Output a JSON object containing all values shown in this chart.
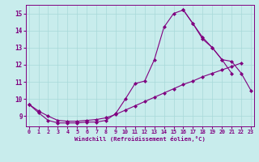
{
  "xlabel": "Windchill (Refroidissement éolien,°C)",
  "background_color": "#c8ecec",
  "line_color": "#800080",
  "grid_color": "#a8d8d8",
  "x_values": [
    0,
    1,
    2,
    3,
    4,
    5,
    6,
    7,
    8,
    9,
    10,
    11,
    12,
    13,
    14,
    15,
    16,
    17,
    18,
    19,
    20,
    21,
    22,
    23
  ],
  "line1": [
    9.7,
    9.2,
    8.75,
    8.6,
    8.6,
    8.6,
    8.65,
    8.65,
    8.75,
    9.15,
    10.0,
    10.9,
    11.05,
    12.3,
    14.2,
    15.0,
    15.2,
    14.4,
    13.5,
    13.0,
    12.3,
    11.5,
    null,
    null
  ],
  "line2": [
    null,
    null,
    null,
    null,
    null,
    null,
    null,
    null,
    null,
    null,
    null,
    null,
    null,
    null,
    null,
    null,
    15.2,
    14.4,
    13.6,
    13.0,
    12.3,
    12.2,
    11.5,
    10.5
  ],
  "line3": [
    9.7,
    9.3,
    9.0,
    8.75,
    8.7,
    8.7,
    8.75,
    8.8,
    8.9,
    9.1,
    9.35,
    9.6,
    9.85,
    10.1,
    10.35,
    10.6,
    10.85,
    11.05,
    11.3,
    11.5,
    11.7,
    11.9,
    12.1,
    null
  ],
  "ylim": [
    8.4,
    15.5
  ],
  "xlim": [
    -0.3,
    23.3
  ],
  "yticks": [
    9,
    10,
    11,
    12,
    13,
    14,
    15
  ],
  "xticks": [
    0,
    1,
    2,
    3,
    4,
    5,
    6,
    7,
    8,
    9,
    10,
    11,
    12,
    13,
    14,
    15,
    16,
    17,
    18,
    19,
    20,
    21,
    22,
    23
  ]
}
